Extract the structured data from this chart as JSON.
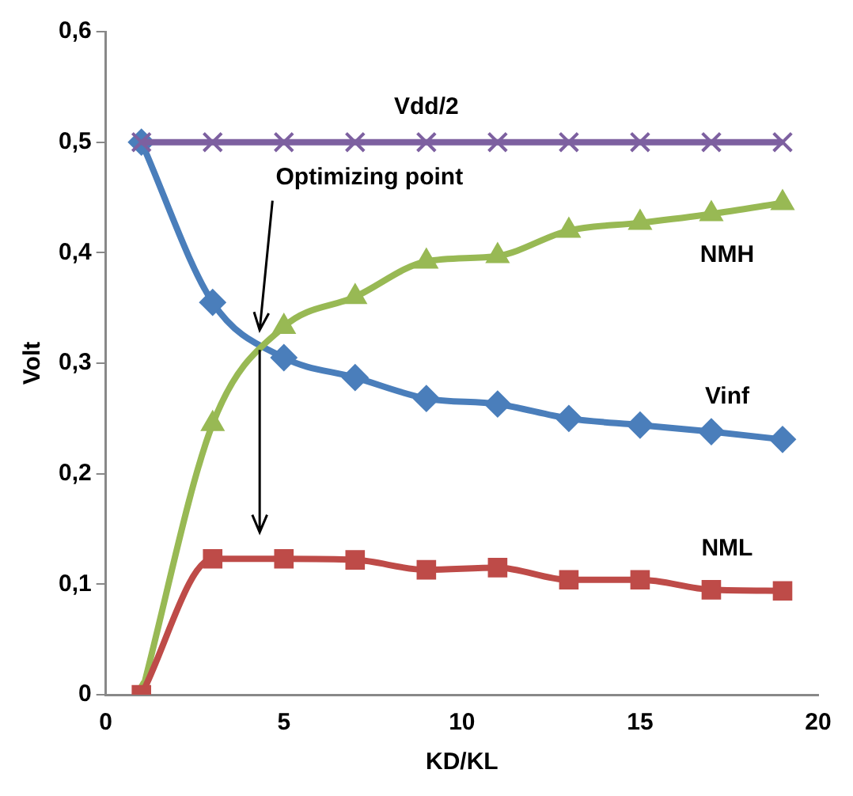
{
  "chart_data": {
    "type": "line",
    "xlabel": "KD/KL",
    "ylabel": "Volt",
    "xlim": [
      0,
      20
    ],
    "xticks": [
      0,
      5,
      10,
      15,
      20
    ],
    "ylim": [
      0,
      0.6
    ],
    "yticks": [
      0,
      {
        "value": 0.1,
        "label": "0,1"
      },
      {
        "value": 0.2,
        "label": "0,2"
      },
      {
        "value": 0.3,
        "label": "0,3"
      },
      {
        "value": 0.4,
        "label": "0,4"
      },
      {
        "value": 0.5,
        "label": "0,5"
      },
      {
        "value": 0.6,
        "label": "0,6"
      }
    ],
    "x": [
      1,
      3,
      5,
      7,
      9,
      11,
      13,
      15,
      17,
      19
    ],
    "series": [
      {
        "name": "Vinf",
        "color": "#4a7ebb",
        "marker": "diamond",
        "values": [
          0.5,
          0.355,
          0.305,
          0.287,
          0.268,
          0.263,
          0.25,
          0.244,
          0.238,
          0.231
        ]
      },
      {
        "name": "NMH",
        "color": "#98b954",
        "marker": "triangle",
        "values": [
          0,
          0.245,
          0.333,
          0.36,
          0.392,
          0.397,
          0.42,
          0.427,
          0.435,
          0.445
        ]
      },
      {
        "name": "NML",
        "color": "#be4b48",
        "marker": "square",
        "values": [
          0,
          0.123,
          0.123,
          0.122,
          0.113,
          0.115,
          0.104,
          0.104,
          0.095,
          0.094
        ]
      },
      {
        "name": "Vdd/2",
        "color": "#7d60a0",
        "marker": "cross",
        "values": [
          0.5,
          0.5,
          0.5,
          0.5,
          0.5,
          0.5,
          0.5,
          0.5,
          0.5,
          0.5
        ]
      }
    ],
    "annotations": [
      "Optimizing point"
    ],
    "grid": false,
    "legend": false
  }
}
